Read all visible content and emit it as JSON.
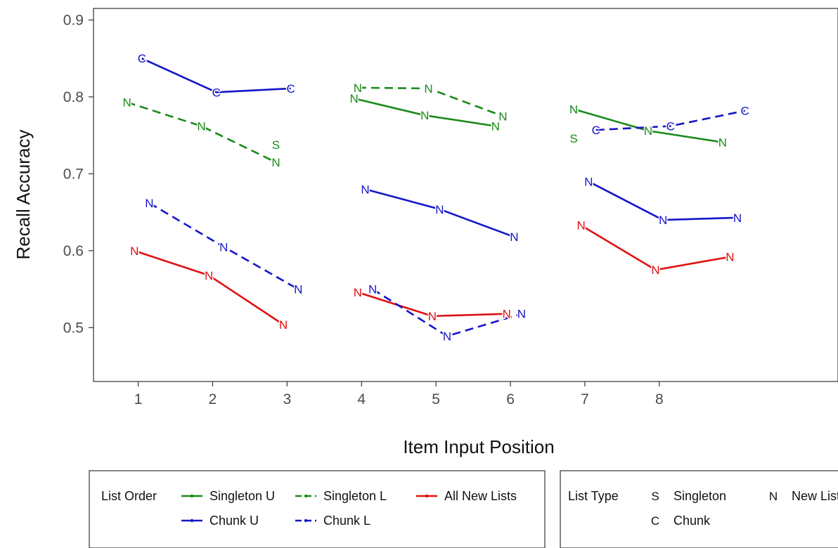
{
  "chart_data": {
    "type": "line",
    "title": "",
    "xlabel": "Item Input Position",
    "ylabel": "Recall Accuracy",
    "xlim": [
      0.4,
      10.4
    ],
    "ylim": [
      0.43,
      0.915
    ],
    "x_ticks": [
      1,
      2,
      3,
      4,
      5,
      6,
      7,
      8
    ],
    "y_ticks": [
      0.5,
      0.6,
      0.7,
      0.8,
      0.9
    ],
    "y_tick_labels": [
      "0.5",
      "0.6",
      "0.7",
      "0.8",
      "0.9"
    ],
    "grid": false,
    "colors": {
      "green": "#1a8a1a",
      "blue": "#1515c8",
      "red": "#e01010"
    },
    "series": [
      {
        "name": "Singleton U",
        "color": "green",
        "dash": "solid",
        "segments": [
          [
            {
              "x": 3.9,
              "y": 0.798,
              "label": "N"
            },
            {
              "x": 4.85,
              "y": 0.776,
              "label": "N"
            },
            {
              "x": 5.8,
              "y": 0.762,
              "label": "N"
            }
          ],
          [
            {
              "x": 6.85,
              "y": 0.784,
              "label": "N"
            },
            {
              "x": 7.85,
              "y": 0.756,
              "label": "N"
            },
            {
              "x": 8.85,
              "y": 0.741,
              "label": "N"
            }
          ]
        ]
      },
      {
        "name": "Singleton L",
        "color": "green",
        "dash": "dashed",
        "segments": [
          [
            {
              "x": 0.85,
              "y": 0.793,
              "label": "N"
            },
            {
              "x": 1.85,
              "y": 0.762,
              "label": "N"
            },
            {
              "x": 2.85,
              "y": 0.715,
              "label": "N"
            }
          ],
          [
            {
              "x": 3.95,
              "y": 0.812,
              "label": "N"
            },
            {
              "x": 4.9,
              "y": 0.811,
              "label": "N"
            },
            {
              "x": 5.9,
              "y": 0.775,
              "label": "N"
            }
          ]
        ]
      },
      {
        "name": "All New Lists",
        "color": "red",
        "dash": "solid",
        "segments": [
          [
            {
              "x": 0.95,
              "y": 0.6,
              "label": "N"
            },
            {
              "x": 1.95,
              "y": 0.568,
              "label": "N"
            },
            {
              "x": 2.95,
              "y": 0.504,
              "label": "N"
            }
          ],
          [
            {
              "x": 3.95,
              "y": 0.546,
              "label": "N"
            },
            {
              "x": 4.95,
              "y": 0.515,
              "label": "N"
            },
            {
              "x": 5.95,
              "y": 0.518,
              "label": "N"
            }
          ],
          [
            {
              "x": 6.95,
              "y": 0.633,
              "label": "N"
            },
            {
              "x": 7.95,
              "y": 0.575,
              "label": "N"
            },
            {
              "x": 8.95,
              "y": 0.592,
              "label": "N"
            }
          ]
        ]
      },
      {
        "name": "Chunk U",
        "color": "blue",
        "dash": "solid",
        "segments": [
          [
            {
              "x": 1.05,
              "y": 0.85,
              "label": "C"
            },
            {
              "x": 2.05,
              "y": 0.806,
              "label": "C"
            },
            {
              "x": 3.05,
              "y": 0.811,
              "label": "C"
            }
          ],
          [
            {
              "x": 4.05,
              "y": 0.68,
              "label": "N"
            },
            {
              "x": 5.05,
              "y": 0.654,
              "label": "N"
            },
            {
              "x": 6.05,
              "y": 0.618,
              "label": "N"
            }
          ],
          [
            {
              "x": 7.05,
              "y": 0.69,
              "label": "N"
            },
            {
              "x": 8.05,
              "y": 0.64,
              "label": "N"
            },
            {
              "x": 9.05,
              "y": 0.643,
              "label": "N"
            }
          ]
        ]
      },
      {
        "name": "Chunk L",
        "color": "blue",
        "dash": "dashed",
        "segments": [
          [
            {
              "x": 1.15,
              "y": 0.662,
              "label": "N"
            },
            {
              "x": 2.15,
              "y": 0.605,
              "label": "N"
            },
            {
              "x": 3.15,
              "y": 0.55,
              "label": "N"
            }
          ],
          [
            {
              "x": 4.15,
              "y": 0.55,
              "label": "N"
            },
            {
              "x": 5.15,
              "y": 0.489,
              "label": "N"
            },
            {
              "x": 6.15,
              "y": 0.518,
              "label": "N"
            }
          ],
          [
            {
              "x": 7.15,
              "y": 0.757,
              "label": "C"
            },
            {
              "x": 8.15,
              "y": 0.762,
              "label": "C"
            },
            {
              "x": 9.15,
              "y": 0.782,
              "label": "C"
            }
          ]
        ]
      }
    ],
    "extra_points": [
      {
        "x": 2.85,
        "y": 0.738,
        "label": "S",
        "color": "green"
      },
      {
        "x": 6.85,
        "y": 0.746,
        "label": "S",
        "color": "green"
      }
    ],
    "legend": {
      "placement": "bottom",
      "list_order": {
        "title": "List Order",
        "entries": [
          {
            "label": "Singleton U",
            "color": "green",
            "dash": "solid"
          },
          {
            "label": "Singleton L",
            "color": "green",
            "dash": "dashed"
          },
          {
            "label": "All New Lists",
            "color": "red",
            "dash": "solid"
          },
          {
            "label": "Chunk U",
            "color": "blue",
            "dash": "solid"
          },
          {
            "label": "Chunk L",
            "color": "blue",
            "dash": "dashed"
          }
        ]
      },
      "list_type": {
        "title": "List Type",
        "entries": [
          {
            "symbol": "S",
            "label": "Singleton"
          },
          {
            "symbol": "N",
            "label": "New List"
          },
          {
            "symbol": "C",
            "label": "Chunk"
          }
        ]
      }
    }
  }
}
